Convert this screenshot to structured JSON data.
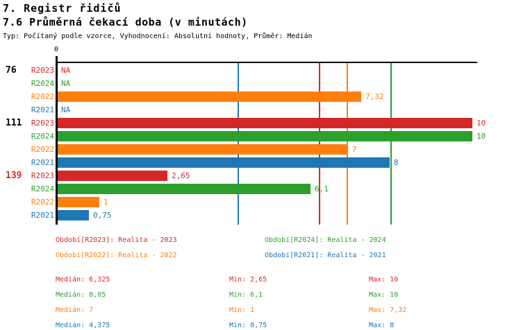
{
  "header": {
    "title": "7. Registr řidičů",
    "subtitle": "7.6 Průměrná čekací doba (v minutách)",
    "meta": "Typ: Počítaný podle vzorce, Vyhodnocení: Absolutní hodnoty, Průměr: Medián"
  },
  "colors": {
    "R2023": "#d62728",
    "R2024": "#2ca02c",
    "R2022": "#ff7f0e",
    "R2021": "#1f77b4",
    "axis": "#000000",
    "highlight_group": "#d62728",
    "background": "#ffffff"
  },
  "chart_data": {
    "type": "bar",
    "orientation": "horizontal",
    "value_axis": {
      "min": 0,
      "max": 10,
      "zero_label": "0",
      "grid": false
    },
    "na_text": "NA",
    "series": [
      {
        "name": "R2023",
        "color": "#d62728",
        "median": 6.325,
        "legend_text": "Období[R2023]: Realita - 2023",
        "median_text": "Medián: 6,325",
        "min_text": "Min: 2,65",
        "max_text": "Max: 10"
      },
      {
        "name": "R2024",
        "color": "#2ca02c",
        "median": 8.05,
        "legend_text": "Období[R2024]: Realita - 2024",
        "median_text": "Medián: 8,05",
        "min_text": "Min: 6,1",
        "max_text": "Max: 10"
      },
      {
        "name": "R2022",
        "color": "#ff7f0e",
        "median": 7,
        "legend_text": "Období[R2022]: Realita - 2022",
        "median_text": "Medián: 7",
        "min_text": "Min: 1",
        "max_text": "Max: 7,32"
      },
      {
        "name": "R2021",
        "color": "#1f77b4",
        "median": 4.375,
        "legend_text": "Období[R2021]: Realita - 2021",
        "median_text": "Medián: 4,375",
        "min_text": "Min: 0,75",
        "max_text": "Max: 8"
      }
    ],
    "groups": [
      {
        "label": "76",
        "label_color": "#000000",
        "bars": [
          {
            "series": "R2023",
            "value": null,
            "display": "NA"
          },
          {
            "series": "R2024",
            "value": null,
            "display": "NA"
          },
          {
            "series": "R2022",
            "value": 7.32,
            "display": "7,32"
          },
          {
            "series": "R2021",
            "value": null,
            "display": "NA"
          }
        ]
      },
      {
        "label": "111",
        "label_color": "#000000",
        "bars": [
          {
            "series": "R2023",
            "value": 10,
            "display": "10"
          },
          {
            "series": "R2024",
            "value": 10,
            "display": "10"
          },
          {
            "series": "R2022",
            "value": 7,
            "display": "7"
          },
          {
            "series": "R2021",
            "value": 8,
            "display": "8"
          }
        ]
      },
      {
        "label": "139",
        "label_color": "#d62728",
        "bars": [
          {
            "series": "R2023",
            "value": 2.65,
            "display": "2,65"
          },
          {
            "series": "R2024",
            "value": 6.1,
            "display": "6,1"
          },
          {
            "series": "R2022",
            "value": 1,
            "display": "1"
          },
          {
            "series": "R2021",
            "value": 0.75,
            "display": "0,75"
          }
        ]
      }
    ]
  }
}
